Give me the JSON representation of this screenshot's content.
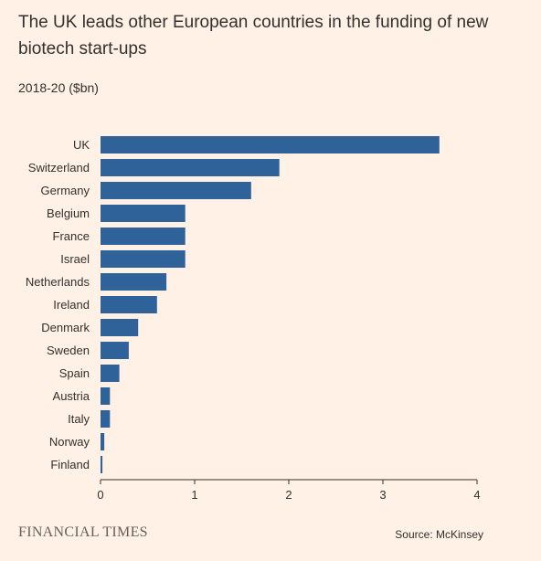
{
  "title": "The UK leads other European countries in the funding of new biotech start-ups",
  "subtitle": "2018-20 ($bn)",
  "footer": {
    "brand": "FINANCIAL TIMES",
    "source": "Source: McKinsey"
  },
  "colors": {
    "background": "#FFF1E5",
    "bar": "#2E6299",
    "axis": "#33302E"
  },
  "chart_data": {
    "type": "bar",
    "orientation": "horizontal",
    "categories": [
      "UK",
      "Switzerland",
      "Germany",
      "Belgium",
      "France",
      "Israel",
      "Netherlands",
      "Ireland",
      "Denmark",
      "Sweden",
      "Spain",
      "Austria",
      "Italy",
      "Norway",
      "Finland"
    ],
    "values": [
      3.6,
      1.9,
      1.6,
      0.9,
      0.9,
      0.9,
      0.7,
      0.6,
      0.4,
      0.3,
      0.2,
      0.1,
      0.1,
      0.04,
      0.02
    ],
    "xticks": [
      "0",
      "1",
      "2",
      "3",
      "4"
    ],
    "xlim": [
      0,
      4
    ],
    "title": "The UK leads other European countries in the funding of new biotech start-ups",
    "subtitle": "2018-20 ($bn)",
    "xlabel": "",
    "ylabel": "",
    "grid": false,
    "legend": "none"
  }
}
